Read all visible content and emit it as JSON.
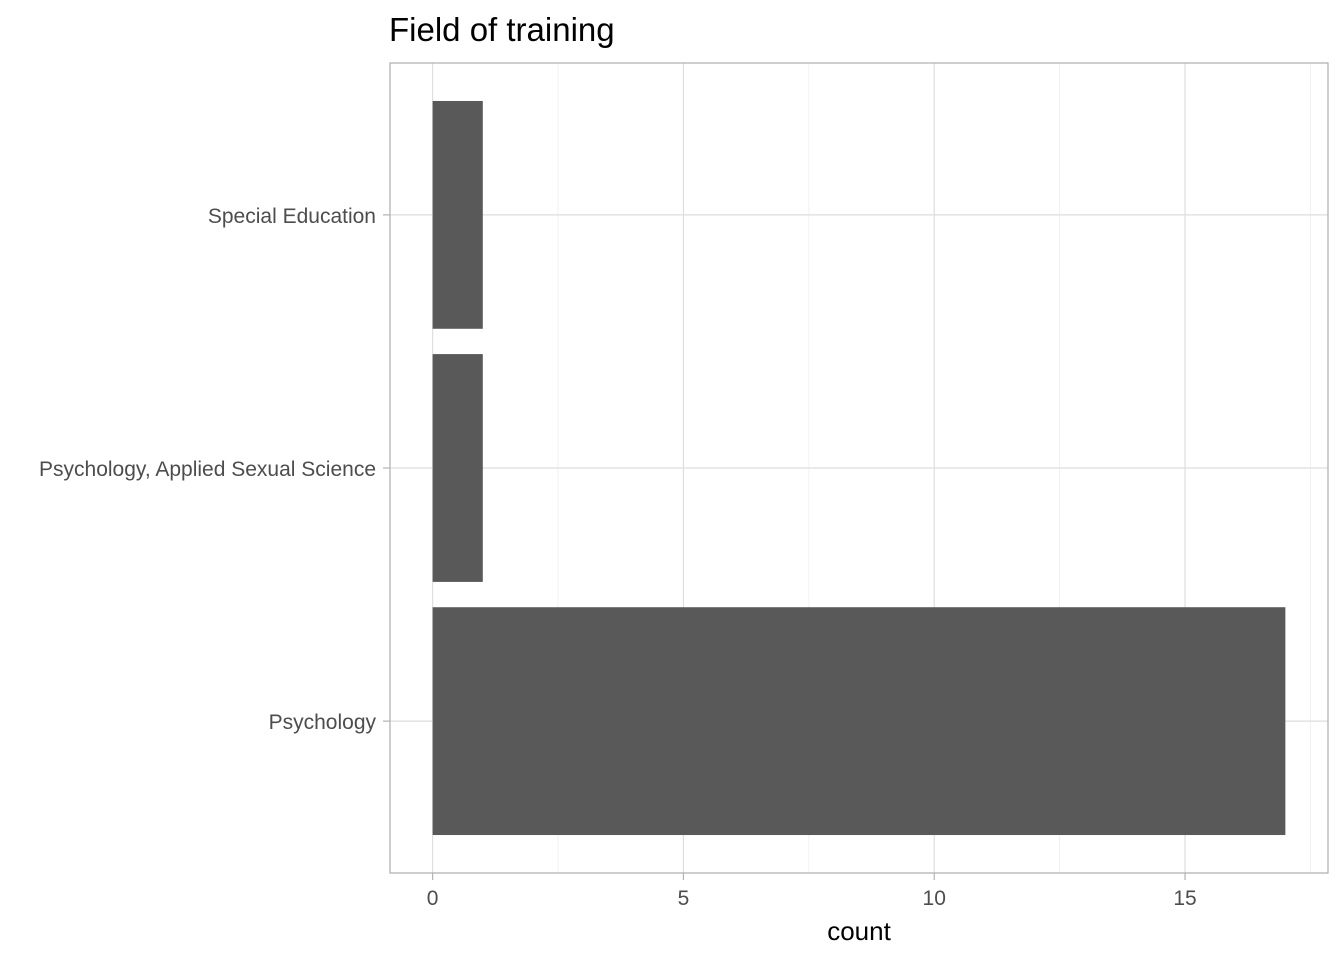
{
  "chart_data": {
    "type": "bar",
    "orientation": "horizontal",
    "title": "Field of training",
    "xlabel": "count",
    "ylabel": "",
    "categories": [
      "Psychology",
      "Psychology, Applied Sexual Science",
      "Special Education"
    ],
    "values": [
      17,
      1,
      1
    ],
    "xlim": [
      -0.85,
      17.85
    ],
    "x_ticks": [
      0,
      5,
      10,
      15
    ],
    "x_tick_labels": [
      "0",
      "5",
      "10",
      "15"
    ],
    "grid": true,
    "legend": "none",
    "colors": {
      "bar": "#595959",
      "panel_border": "#b3b3b3",
      "grid": "#dedede"
    }
  }
}
